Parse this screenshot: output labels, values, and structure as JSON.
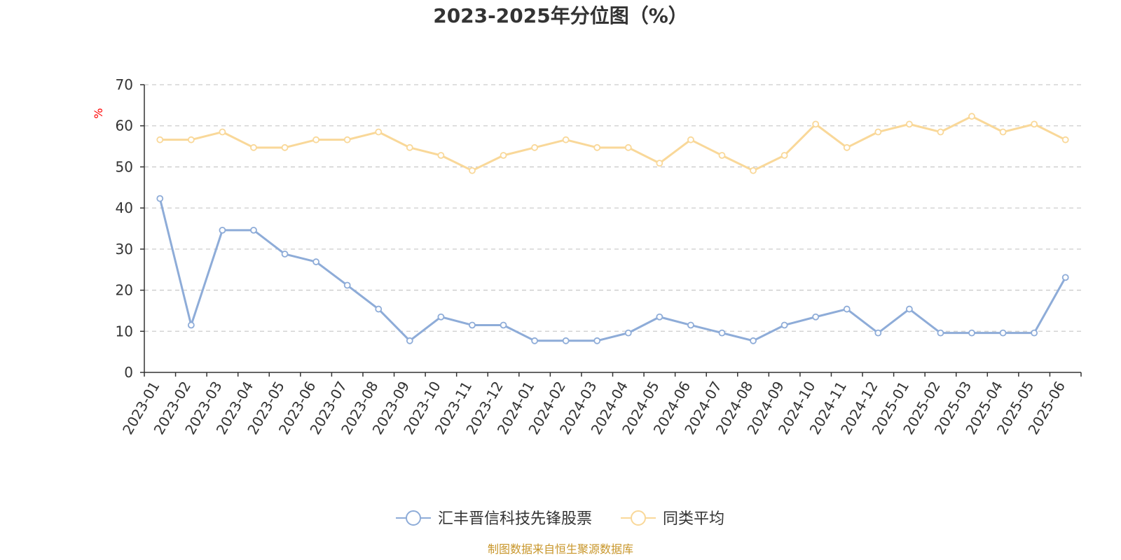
{
  "chart_data": {
    "type": "line",
    "title": "2023-2025年分位图（%）",
    "y_unit": "%",
    "ylim": [
      0,
      70
    ],
    "yticks": [
      0,
      10,
      20,
      30,
      40,
      50,
      60,
      70
    ],
    "grid": true,
    "legend_position": "bottom",
    "categories": [
      "2023-01",
      "2023-02",
      "2023-03",
      "2023-04",
      "2023-05",
      "2023-06",
      "2023-07",
      "2023-08",
      "2023-09",
      "2023-10",
      "2023-11",
      "2023-12",
      "2024-01",
      "2024-02",
      "2024-03",
      "2024-04",
      "2024-05",
      "2024-06",
      "2024-07",
      "2024-08",
      "2024-09",
      "2024-10",
      "2024-11",
      "2024-12",
      "2025-01",
      "2025-02",
      "2025-03",
      "2025-04",
      "2025-05",
      "2025-06"
    ],
    "series": [
      {
        "name": "汇丰晋信科技先锋股票",
        "color": "#8eacd8",
        "values": [
          42.3,
          11.5,
          34.6,
          34.6,
          28.8,
          26.9,
          21.2,
          15.4,
          7.7,
          13.5,
          11.5,
          11.5,
          7.7,
          7.7,
          7.7,
          9.6,
          13.5,
          11.5,
          9.6,
          7.7,
          11.5,
          13.5,
          15.4,
          9.6,
          15.4,
          9.6,
          9.6,
          9.6,
          9.6,
          23.1
        ]
      },
      {
        "name": "同类平均",
        "color": "#f9d899",
        "values": [
          56.6,
          56.6,
          58.5,
          54.7,
          54.7,
          56.6,
          56.6,
          58.5,
          54.7,
          52.8,
          49.1,
          52.8,
          54.7,
          56.6,
          54.7,
          54.7,
          50.9,
          56.6,
          52.8,
          49.1,
          52.8,
          60.4,
          54.7,
          58.5,
          60.4,
          58.5,
          62.3,
          58.5,
          60.4,
          56.6
        ]
      }
    ]
  },
  "colors": {
    "unit_label": "#ff0000",
    "source_text": "#c8962a",
    "axis": "#333333",
    "grid": "#cccccc"
  },
  "source_text": "制图数据来自恒生聚源数据库"
}
